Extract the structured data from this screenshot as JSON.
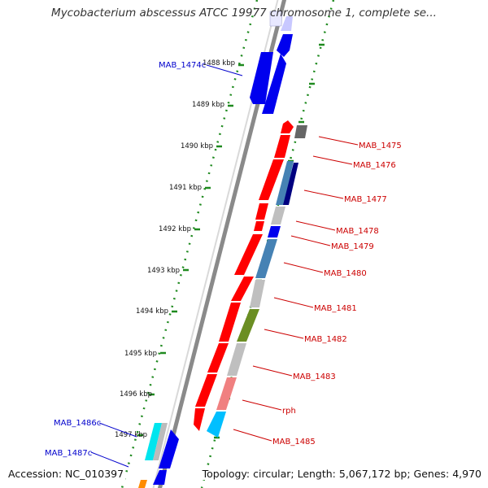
{
  "title": "Mycobacterium abscessus ATCC 19977 chromosome 1, complete se...",
  "footer": {
    "accession": "Accession: NC_010397",
    "topology": "Topology: circular; Length: 5,067,172 bp; Genes: 4,970"
  },
  "ruler_ticks": [
    "1488 kbp",
    "1489 kbp",
    "1490 kbp",
    "1491 kbp",
    "1492 kbp",
    "1493 kbp",
    "1494 kbp",
    "1495 kbp",
    "1496 kbp",
    "1497 kbp"
  ],
  "forward_gene_labels": [
    "MAB_1475",
    "MAB_1476",
    "MAB_1477",
    "MAB_1478",
    "MAB_1479",
    "MAB_1480",
    "MAB_1481",
    "MAB_1482",
    "MAB_1483",
    "rph",
    "MAB_1485"
  ],
  "reverse_gene_labels": [
    "MAB_1474c",
    "MAB_1486c",
    "MAB_1487c"
  ],
  "colors": {
    "forward_label": "#cc0000",
    "reverse_label": "#0000cc",
    "cds_forward": "#ff0000",
    "cds_reverse": "#0000ee",
    "backbone": "#888888",
    "ruler_dots": "#228b22"
  }
}
